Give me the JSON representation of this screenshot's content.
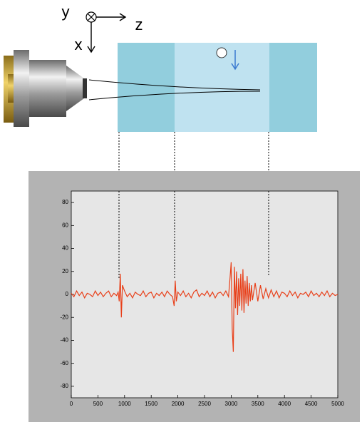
{
  "diagram": {
    "axis_labels": {
      "y": "y",
      "x": "x",
      "z": "z"
    }
  },
  "chart_data": {
    "type": "line",
    "color": "#e8401a",
    "x": [
      0,
      50,
      100,
      150,
      200,
      250,
      300,
      350,
      400,
      450,
      500,
      550,
      600,
      650,
      700,
      750,
      800,
      850,
      880,
      900,
      920,
      940,
      960,
      1000,
      1050,
      1100,
      1150,
      1200,
      1250,
      1300,
      1350,
      1400,
      1450,
      1500,
      1550,
      1600,
      1650,
      1700,
      1750,
      1800,
      1850,
      1900,
      1930,
      1950,
      1970,
      2000,
      2050,
      2100,
      2150,
      2200,
      2250,
      2300,
      2350,
      2400,
      2450,
      2500,
      2550,
      2600,
      2650,
      2700,
      2750,
      2800,
      2850,
      2900,
      2950,
      2980,
      3000,
      3020,
      3040,
      3060,
      3080,
      3100,
      3120,
      3140,
      3160,
      3180,
      3200,
      3220,
      3240,
      3260,
      3280,
      3300,
      3320,
      3340,
      3360,
      3380,
      3400,
      3450,
      3500,
      3550,
      3600,
      3650,
      3700,
      3750,
      3800,
      3850,
      3900,
      3950,
      4000,
      4050,
      4100,
      4150,
      4200,
      4250,
      4300,
      4350,
      4400,
      4450,
      4500,
      4550,
      4600,
      4650,
      4700,
      4750,
      4800,
      4850,
      4900,
      4950,
      5000
    ],
    "values": [
      1,
      -2,
      3,
      -1,
      2,
      -3,
      1,
      0,
      -2,
      3,
      -1,
      2,
      -2,
      1,
      3,
      -2,
      1,
      -1,
      2,
      -6,
      18,
      -20,
      8,
      3,
      -2,
      1,
      -3,
      2,
      0,
      -1,
      3,
      -2,
      1,
      2,
      -3,
      1,
      -1,
      2,
      -2,
      3,
      0,
      -2,
      -10,
      12,
      -6,
      2,
      -1,
      3,
      -2,
      1,
      -3,
      2,
      4,
      -2,
      1,
      -1,
      3,
      -2,
      2,
      -3,
      1,
      2,
      -1,
      3,
      -2,
      15,
      28,
      -30,
      -50,
      24,
      -12,
      20,
      -18,
      14,
      -10,
      18,
      -14,
      22,
      -16,
      12,
      -8,
      16,
      -10,
      10,
      -6,
      8,
      -5,
      10,
      -6,
      8,
      -4,
      5,
      -3,
      4,
      -2,
      3,
      -3,
      2,
      1,
      -2,
      3,
      -1,
      2,
      -3,
      1,
      0,
      2,
      -2,
      3,
      -1,
      1,
      -2,
      2,
      -1,
      3,
      -2,
      1,
      -1,
      0
    ],
    "xlim": [
      0,
      5000
    ],
    "xticks": [
      0,
      500,
      1000,
      1500,
      2000,
      2500,
      3000,
      3500,
      4000,
      4500,
      5000
    ],
    "ylim": [
      -90,
      90
    ],
    "yticks": [
      -80,
      -60,
      -40,
      -20,
      0,
      20,
      40,
      60,
      80
    ]
  }
}
